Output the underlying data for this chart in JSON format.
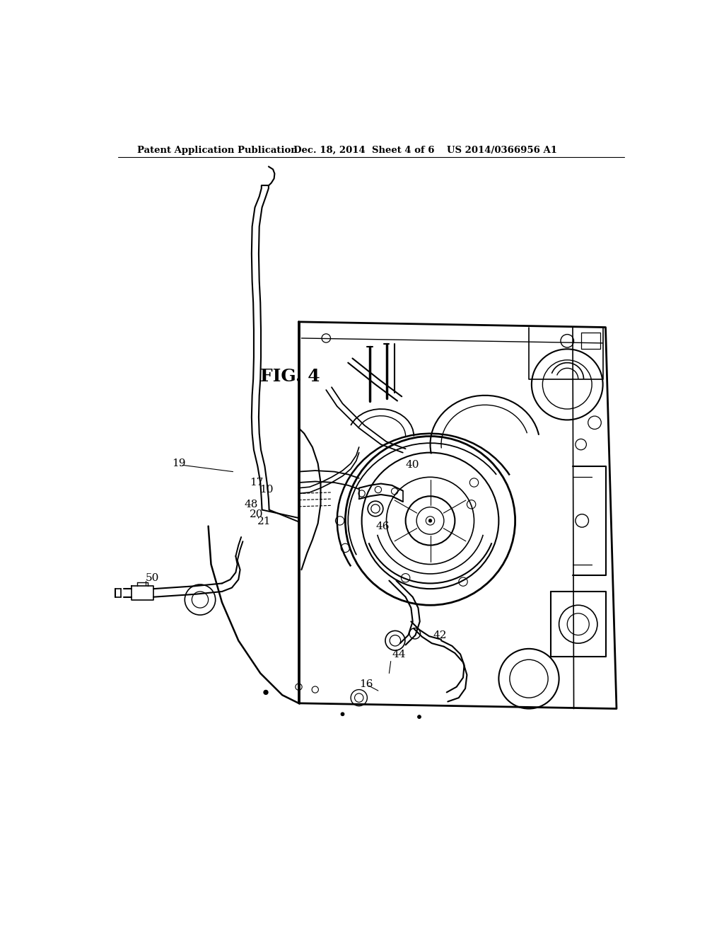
{
  "title_left": "Patent Application Publication",
  "title_mid": "Dec. 18, 2014  Sheet 4 of 6",
  "title_right": "US 2014/0366956 A1",
  "fig_label": "FIG. 4",
  "background_color": "#ffffff"
}
